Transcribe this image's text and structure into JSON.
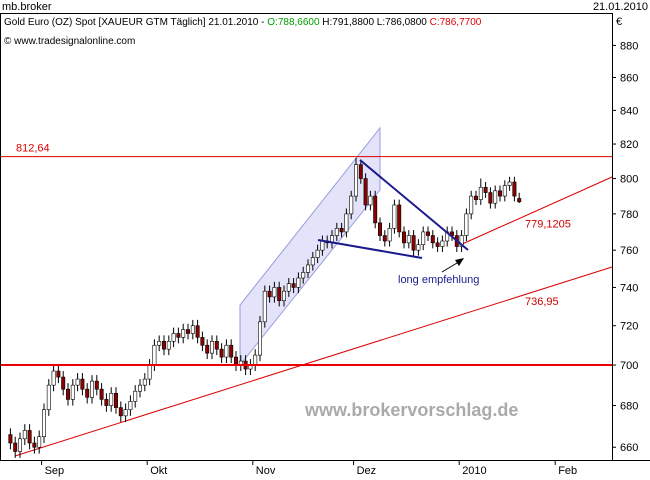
{
  "chart_data": {
    "type": "candlestick",
    "window_title": "mb.broker",
    "date": "21.01.2010",
    "header": {
      "instrument": "Gold Euro (OZ) Spot [XAUEUR GTM  Täglich] 21.01.2010 - ",
      "open": "O:788,6600",
      "high_low": " H:791,8800 L:786,0800 ",
      "close": "C:786,7700"
    },
    "source": "© www.tradesignalonline.com",
    "currency": "€",
    "watermark": "www.brokervorschlag.de",
    "annotation": "long empfehlung",
    "log_scale": true,
    "up_color": "#ffffff",
    "down_color": "#8b0000",
    "categories": [
      null,
      null,
      null,
      null,
      null,
      null,
      null,
      "Sep",
      null,
      null,
      null,
      null,
      null,
      null,
      null,
      null,
      null,
      null,
      null,
      null,
      null,
      null,
      null,
      null,
      null,
      null,
      null,
      null,
      null,
      "Okt",
      null,
      null,
      null,
      null,
      null,
      null,
      null,
      null,
      null,
      null,
      null,
      null,
      null,
      null,
      null,
      null,
      null,
      null,
      null,
      null,
      null,
      "Nov",
      null,
      null,
      null,
      null,
      null,
      null,
      null,
      null,
      null,
      null,
      null,
      null,
      null,
      null,
      null,
      null,
      null,
      null,
      null,
      null,
      "Dez",
      null,
      null,
      null,
      null,
      null,
      null,
      null,
      null,
      null,
      null,
      null,
      null,
      null,
      null,
      null,
      null,
      null,
      null,
      null,
      null,
      null,
      "2010",
      null,
      null,
      null,
      null,
      null,
      null,
      null,
      null,
      null,
      null,
      null,
      null,
      null,
      null,
      null,
      null,
      null,
      null,
      null,
      "Feb",
      null,
      null,
      null,
      null,
      null,
      null,
      null,
      null,
      null,
      null
    ],
    "open": [
      666,
      662,
      658,
      664,
      668,
      662,
      660,
      665,
      678,
      690,
      697,
      694,
      688,
      683,
      690,
      693,
      688,
      684,
      692,
      688,
      683,
      680,
      686,
      679,
      675,
      678,
      682,
      687,
      690,
      693,
      700,
      710,
      712,
      708,
      712,
      716,
      714,
      718,
      716,
      720,
      714,
      710,
      706,
      712,
      708,
      704,
      710,
      704,
      700,
      702,
      698,
      700,
      705,
      722,
      738,
      735,
      740,
      733,
      738,
      742,
      740,
      745,
      748,
      752,
      756,
      760,
      765,
      764,
      768,
      772,
      770,
      780,
      790,
      808,
      800,
      785,
      790,
      775,
      768,
      765,
      772,
      785,
      770,
      764,
      768,
      760,
      763,
      770,
      768,
      764,
      762,
      765,
      770,
      768,
      762,
      768,
      780,
      790,
      788,
      795,
      792,
      786,
      793,
      790,
      796,
      798,
      788.66,
      null,
      null,
      null,
      null,
      null,
      null,
      null,
      null,
      null,
      null,
      null,
      null,
      null,
      null,
      null,
      null,
      null,
      null
    ],
    "high": [
      669,
      665,
      667,
      671,
      671,
      665,
      668,
      681,
      693,
      700,
      700,
      697,
      691,
      693,
      696,
      696,
      691,
      695,
      695,
      691,
      686,
      689,
      689,
      682,
      681,
      685,
      690,
      693,
      696,
      703,
      713,
      715,
      715,
      715,
      719,
      719,
      721,
      721,
      723,
      723,
      717,
      713,
      715,
      715,
      711,
      713,
      713,
      707,
      705,
      705,
      703,
      708,
      725,
      741,
      741,
      743,
      743,
      741,
      745,
      745,
      748,
      751,
      755,
      759,
      763,
      768,
      768,
      771,
      775,
      775,
      783,
      793,
      812,
      811,
      803,
      793,
      793,
      778,
      771,
      775,
      788,
      788,
      773,
      771,
      771,
      766,
      773,
      773,
      771,
      767,
      768,
      773,
      773,
      771,
      771,
      783,
      793,
      793,
      800,
      798,
      795,
      796,
      796,
      799,
      801,
      801,
      791.88,
      null,
      null,
      null,
      null,
      null,
      null,
      null,
      null,
      null,
      null,
      null,
      null,
      null,
      null,
      null,
      null,
      null,
      null
    ],
    "low": [
      659,
      655,
      655,
      661,
      659,
      657,
      657,
      662,
      675,
      687,
      691,
      685,
      680,
      680,
      687,
      685,
      681,
      681,
      685,
      680,
      677,
      677,
      676,
      672,
      672,
      675,
      679,
      684,
      687,
      690,
      697,
      707,
      705,
      705,
      709,
      711,
      711,
      713,
      713,
      711,
      707,
      703,
      703,
      705,
      701,
      701,
      701,
      697,
      697,
      695,
      695,
      697,
      702,
      719,
      732,
      732,
      730,
      730,
      735,
      737,
      737,
      742,
      745,
      749,
      753,
      757,
      761,
      761,
      765,
      767,
      767,
      777,
      787,
      797,
      782,
      782,
      772,
      765,
      762,
      762,
      769,
      767,
      761,
      761,
      757,
      757,
      760,
      765,
      761,
      759,
      759,
      762,
      765,
      759,
      759,
      765,
      777,
      785,
      785,
      789,
      783,
      783,
      787,
      787,
      793,
      787,
      786.08,
      null,
      null,
      null,
      null,
      null,
      null,
      null,
      null,
      null,
      null,
      null,
      null,
      null,
      null,
      null,
      null,
      null,
      null
    ],
    "close": [
      662,
      658,
      664,
      668,
      662,
      660,
      665,
      678,
      690,
      697,
      694,
      688,
      683,
      690,
      693,
      688,
      684,
      692,
      688,
      683,
      680,
      686,
      679,
      675,
      678,
      682,
      687,
      690,
      693,
      700,
      710,
      712,
      708,
      712,
      716,
      714,
      718,
      716,
      720,
      714,
      710,
      706,
      712,
      708,
      704,
      710,
      704,
      700,
      702,
      698,
      700,
      705,
      722,
      738,
      735,
      740,
      733,
      738,
      742,
      740,
      745,
      748,
      752,
      756,
      760,
      765,
      764,
      768,
      772,
      770,
      780,
      790,
      808,
      800,
      785,
      790,
      775,
      768,
      765,
      772,
      785,
      770,
      764,
      768,
      760,
      763,
      770,
      768,
      764,
      762,
      765,
      770,
      768,
      762,
      768,
      780,
      790,
      788,
      795,
      792,
      786,
      793,
      790,
      796,
      798,
      790,
      786.77,
      null,
      null,
      null,
      null,
      null,
      null,
      null,
      null,
      null,
      null,
      null,
      null,
      null,
      null,
      null,
      null,
      null,
      null
    ],
    "ylim": [
      654,
      900
    ],
    "yticks": [
      660,
      680,
      700,
      720,
      740,
      760,
      780,
      800,
      820,
      840,
      860,
      880
    ],
    "hlines": [
      {
        "value": 812.64,
        "label": "812,64",
        "color": "#dd0000",
        "width": 1
      },
      {
        "value": 700,
        "color": "#ee0000",
        "width": 2
      }
    ],
    "line_labels": [
      {
        "value": 779.1205,
        "label": "779,1205"
      },
      {
        "value": 736.95,
        "label": "736,95"
      }
    ]
  }
}
